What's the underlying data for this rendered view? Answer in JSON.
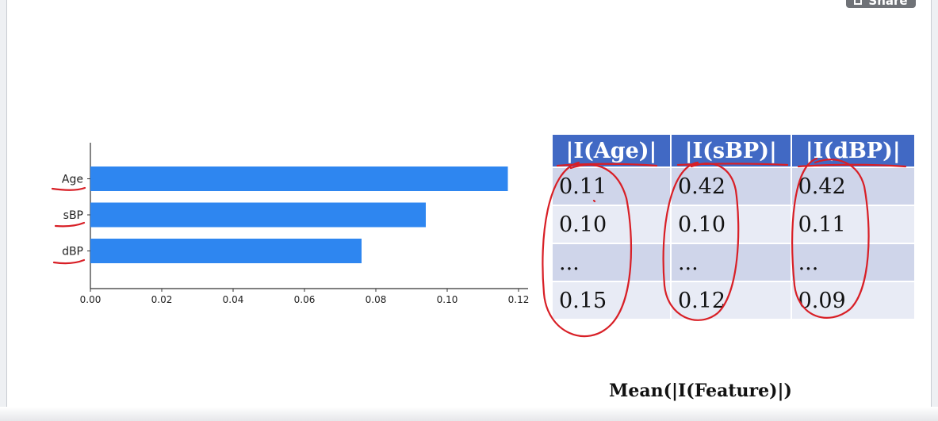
{
  "toolbar": {
    "share_label": "Share"
  },
  "chart_data": {
    "type": "bar",
    "orientation": "horizontal",
    "categories": [
      "Age",
      "sBP",
      "dBP"
    ],
    "values": [
      0.117,
      0.094,
      0.076
    ],
    "xticks": [
      "0.00",
      "0.02",
      "0.04",
      "0.06",
      "0.08",
      "0.10",
      "0.12"
    ],
    "xlim": [
      0,
      0.12
    ],
    "bar_color": "#2e86f0",
    "grid": false
  },
  "table": {
    "headers": [
      "|I(Age)|",
      "|I(sBP)|",
      "|I(dBP)|"
    ],
    "rows": [
      [
        "0.11",
        "0.42",
        "0.42"
      ],
      [
        "0.10",
        "0.10",
        "0.11"
      ],
      [
        "...",
        "...",
        "..."
      ],
      [
        "0.15",
        "0.12",
        "0.09"
      ]
    ],
    "header_color": "#4169c4",
    "row_colors": [
      "#cfd5ea",
      "#e8ebf5"
    ]
  },
  "caption": "Mean(|I(Feature)|)",
  "annotation_color": "#d81f26"
}
